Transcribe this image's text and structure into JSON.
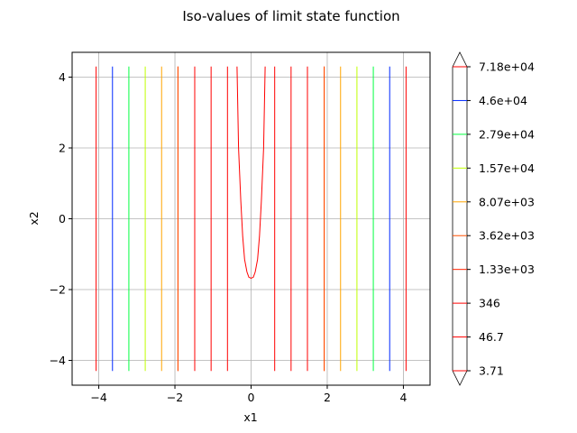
{
  "chart_data": {
    "type": "contour",
    "title": "Iso-values of limit state function",
    "xlabel": "x1",
    "ylabel": "x2",
    "xlim": [
      -4.7,
      4.7
    ],
    "ylim": [
      -4.7,
      4.7
    ],
    "x_ticks": [
      -4,
      -2,
      0,
      2,
      4
    ],
    "y_ticks": [
      -4,
      -2,
      0,
      2,
      4
    ],
    "x_tick_labels": [
      "−4",
      "−2",
      "0",
      "2",
      "4"
    ],
    "y_tick_labels": [
      "−4",
      "−2",
      "0",
      "2",
      "4"
    ],
    "grid": true,
    "contour_y_range": [
      -4.3,
      4.3
    ],
    "levels": [
      {
        "label": "3.71",
        "color": "#ff0000",
        "x": [
          -0.62,
          0.62
        ]
      },
      {
        "label": "46.7",
        "color": "#ff0000",
        "x": [
          -1.05,
          1.05
        ]
      },
      {
        "label": "346",
        "color": "#ff0000",
        "x": [
          -1.48,
          1.48
        ]
      },
      {
        "label": "1.33e+03",
        "color": "#ff2200",
        "x": [
          -1.92,
          1.92
        ]
      },
      {
        "label": "3.62e+03",
        "color": "#ff5000",
        "x": [
          -1.92,
          1.92
        ]
      },
      {
        "label": "8.07e+03",
        "color": "#ffa500",
        "x": [
          -2.35,
          2.35
        ]
      },
      {
        "label": "1.57e+04",
        "color": "#c0ff00",
        "x": [
          -2.78,
          2.78
        ]
      },
      {
        "label": "2.79e+04",
        "color": "#00ff40",
        "x": [
          -3.21,
          3.21
        ]
      },
      {
        "label": "4.6e+04",
        "color": "#0028ff",
        "x": [
          -3.64,
          3.64
        ]
      },
      {
        "label": "7.18e+04",
        "color": "#ff0000",
        "x": [
          -4.07,
          4.07
        ]
      }
    ],
    "center_curve": {
      "color": "#ff0000",
      "points": [
        [
          -0.37,
          4.3
        ],
        [
          -0.33,
          2.0
        ],
        [
          -0.27,
          0.5
        ],
        [
          -0.22,
          -0.5
        ],
        [
          -0.17,
          -1.15
        ],
        [
          -0.11,
          -1.5
        ],
        [
          -0.06,
          -1.65
        ],
        [
          0.0,
          -1.68
        ],
        [
          0.06,
          -1.65
        ],
        [
          0.11,
          -1.5
        ],
        [
          0.17,
          -1.15
        ],
        [
          0.22,
          -0.5
        ],
        [
          0.27,
          0.5
        ],
        [
          0.33,
          2.0
        ],
        [
          0.37,
          4.3
        ]
      ]
    },
    "colorbar": {
      "extend": "both",
      "tick_labels": [
        "3.71",
        "46.7",
        "346",
        "1.33e+03",
        "3.62e+03",
        "8.07e+03",
        "1.57e+04",
        "2.79e+04",
        "4.6e+04",
        "7.18e+04"
      ],
      "colors": [
        "#ff0000",
        "#ff0000",
        "#ff0000",
        "#ff2200",
        "#ff5000",
        "#ffa500",
        "#c0ff00",
        "#00ff40",
        "#0028ff",
        "#ff0000"
      ]
    }
  }
}
